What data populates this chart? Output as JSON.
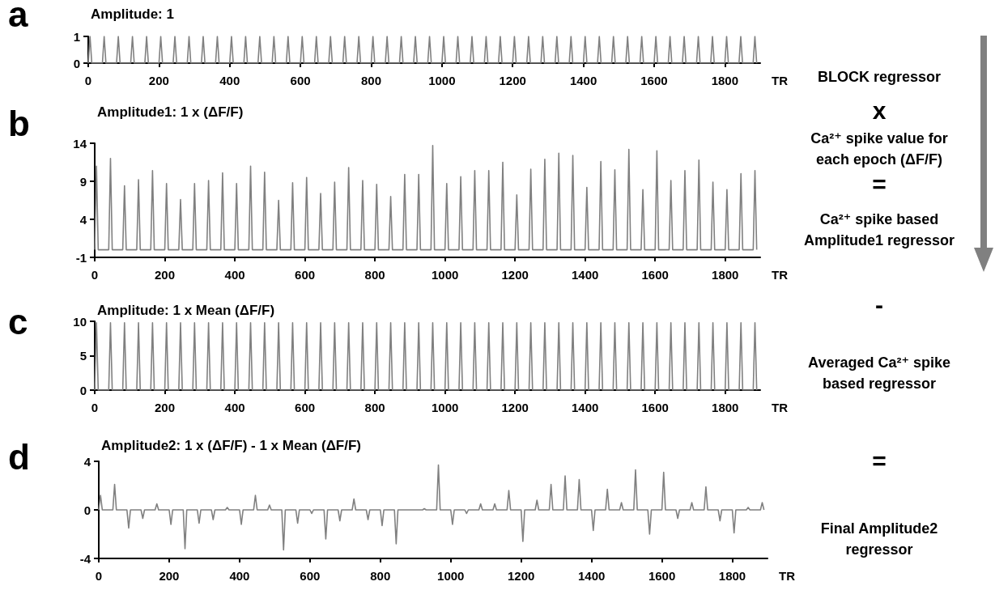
{
  "chart_data": [
    {
      "type": "line",
      "title": "Amplitude: 1",
      "xlabel": "TR",
      "marker": "none",
      "xlim": [
        0,
        1900
      ],
      "xticks": [
        0,
        200,
        400,
        600,
        800,
        1000,
        1200,
        1400,
        1600,
        1800
      ],
      "ylim": [
        0,
        1
      ],
      "yticks": [
        0,
        1
      ],
      "x": [
        0,
        5,
        10,
        40,
        45,
        50,
        80,
        85,
        90,
        120,
        125,
        130,
        160,
        165,
        170,
        200,
        205,
        210,
        240,
        245,
        250,
        280,
        285,
        290,
        320,
        325,
        330,
        360,
        365,
        370,
        400,
        405,
        410,
        440,
        445,
        450,
        480,
        485,
        490,
        520,
        525,
        530,
        560,
        565,
        570,
        600,
        605,
        610,
        640,
        645,
        650,
        680,
        685,
        690,
        720,
        725,
        730,
        760,
        765,
        770,
        800,
        805,
        810,
        840,
        845,
        850,
        880,
        885,
        890,
        920,
        925,
        930,
        960,
        965,
        970,
        1000,
        1005,
        1010,
        1040,
        1045,
        1050,
        1080,
        1085,
        1090,
        1120,
        1125,
        1130,
        1160,
        1165,
        1170,
        1200,
        1205,
        1210,
        1240,
        1245,
        1250,
        1280,
        1285,
        1290,
        1320,
        1325,
        1330,
        1360,
        1365,
        1370,
        1400,
        1405,
        1410,
        1440,
        1445,
        1450,
        1480,
        1485,
        1490,
        1520,
        1525,
        1530,
        1560,
        1565,
        1570,
        1600,
        1605,
        1610,
        1640,
        1645,
        1650,
        1680,
        1685,
        1690,
        1720,
        1725,
        1730,
        1760,
        1765,
        1770,
        1800,
        1805,
        1810,
        1840,
        1845,
        1850,
        1880,
        1885,
        1890
      ],
      "series": [
        {
          "color": "#808080",
          "values": [
            0,
            1,
            0,
            0,
            1,
            0,
            0,
            1,
            0,
            0,
            1,
            0,
            0,
            1,
            0,
            0,
            1,
            0,
            0,
            1,
            0,
            0,
            1,
            0,
            0,
            1,
            0,
            0,
            1,
            0,
            0,
            1,
            0,
            0,
            1,
            0,
            0,
            1,
            0,
            0,
            1,
            0,
            0,
            1,
            0,
            0,
            1,
            0,
            0,
            1,
            0,
            0,
            1,
            0,
            0,
            1,
            0,
            0,
            1,
            0,
            0,
            1,
            0,
            0,
            1,
            0,
            0,
            1,
            0,
            0,
            1,
            0,
            0,
            1,
            0,
            0,
            1,
            0,
            0,
            1,
            0,
            0,
            1,
            0,
            0,
            1,
            0,
            0,
            1,
            0,
            0,
            1,
            0,
            0,
            1,
            0,
            0,
            1,
            0,
            0,
            1,
            0,
            0,
            1,
            0,
            0,
            1,
            0,
            0,
            1,
            0,
            0,
            1,
            0,
            0,
            1,
            0,
            0,
            1,
            0,
            0,
            1,
            0,
            0,
            1,
            0,
            0,
            1,
            0,
            0,
            1,
            0,
            0,
            1,
            0,
            0,
            1,
            0,
            0,
            1,
            0,
            0,
            1,
            0
          ]
        }
      ],
      "annotations": [
        "a",
        "BLOCK regressor",
        "x"
      ]
    },
    {
      "type": "line",
      "title": "Amplitude1: 1 x (ΔF/F)",
      "xlabel": "TR",
      "marker": "none",
      "xlim": [
        0,
        1900
      ],
      "xticks": [
        0,
        200,
        400,
        600,
        800,
        1000,
        1200,
        1400,
        1600,
        1800
      ],
      "ylim": [
        -1,
        14
      ],
      "yticks": [
        -1,
        4,
        9,
        14
      ],
      "x": [
        0,
        5,
        10,
        40,
        45,
        50,
        80,
        85,
        90,
        120,
        125,
        130,
        160,
        165,
        170,
        200,
        205,
        210,
        240,
        245,
        250,
        280,
        285,
        290,
        320,
        325,
        330,
        360,
        365,
        370,
        400,
        405,
        410,
        440,
        445,
        450,
        480,
        485,
        490,
        520,
        525,
        530,
        560,
        565,
        570,
        600,
        605,
        610,
        640,
        645,
        650,
        680,
        685,
        690,
        720,
        725,
        730,
        760,
        765,
        770,
        800,
        805,
        810,
        840,
        845,
        850,
        880,
        885,
        890,
        920,
        925,
        930,
        960,
        965,
        970,
        1000,
        1005,
        1010,
        1040,
        1045,
        1050,
        1080,
        1085,
        1090,
        1120,
        1125,
        1130,
        1160,
        1165,
        1170,
        1200,
        1205,
        1210,
        1240,
        1245,
        1250,
        1280,
        1285,
        1290,
        1320,
        1325,
        1330,
        1360,
        1365,
        1370,
        1400,
        1405,
        1410,
        1440,
        1445,
        1450,
        1480,
        1485,
        1490,
        1520,
        1525,
        1530,
        1560,
        1565,
        1570,
        1600,
        1605,
        1610,
        1640,
        1645,
        1650,
        1680,
        1685,
        1690,
        1720,
        1725,
        1730,
        1760,
        1765,
        1770,
        1800,
        1805,
        1810,
        1840,
        1845,
        1850,
        1880,
        1885,
        1890
      ],
      "series": [
        {
          "color": "#808080",
          "values": [
            0,
            11.0,
            0,
            0,
            12.0,
            0,
            0,
            8.4,
            0,
            0,
            9.2,
            0,
            0,
            10.4,
            0,
            0,
            8.7,
            0,
            0,
            6.6,
            0,
            0,
            8.7,
            0,
            0,
            9.1,
            0,
            0,
            10.1,
            0,
            0,
            8.7,
            0,
            0,
            11.0,
            0,
            0,
            10.2,
            0,
            0,
            6.5,
            0,
            0,
            8.8,
            0,
            0,
            9.5,
            0,
            0,
            7.4,
            0,
            0,
            8.9,
            0,
            0,
            10.8,
            0,
            0,
            9.1,
            0,
            0,
            8.6,
            0,
            0,
            7.0,
            0,
            0,
            9.9,
            0,
            0,
            9.9,
            0,
            0,
            13.7,
            0,
            0,
            8.7,
            0,
            0,
            9.6,
            0,
            0,
            10.4,
            0,
            0,
            10.4,
            0,
            0,
            11.5,
            0,
            0,
            7.2,
            0,
            0,
            10.6,
            0,
            0,
            11.9,
            0,
            0,
            12.7,
            0,
            0,
            12.4,
            0,
            0,
            8.2,
            0,
            0,
            11.6,
            0,
            0,
            10.5,
            0,
            0,
            13.2,
            0,
            0,
            7.9,
            0,
            0,
            13.0,
            0,
            0,
            9.1,
            0,
            0,
            10.4,
            0,
            0,
            11.8,
            0,
            0,
            8.9,
            0,
            0,
            7.9,
            0,
            0,
            10.0,
            0,
            0,
            10.4,
            0
          ]
        }
      ],
      "annotations": [
        "b",
        "Ca²⁺ spike value for each epoch (ΔF/F)",
        "=",
        "Ca²⁺ spike based Amplitude1 regressor"
      ]
    },
    {
      "type": "line",
      "title": "Amplitude: 1 x Mean (ΔF/F)",
      "xlabel": "TR",
      "marker": "none",
      "xlim": [
        0,
        1900
      ],
      "xticks": [
        0,
        200,
        400,
        600,
        800,
        1000,
        1200,
        1400,
        1600,
        1800
      ],
      "ylim": [
        0,
        10
      ],
      "yticks": [
        0,
        5,
        10
      ],
      "x": [
        0,
        5,
        10,
        40,
        45,
        50,
        80,
        85,
        90,
        120,
        125,
        130,
        160,
        165,
        170,
        200,
        205,
        210,
        240,
        245,
        250,
        280,
        285,
        290,
        320,
        325,
        330,
        360,
        365,
        370,
        400,
        405,
        410,
        440,
        445,
        450,
        480,
        485,
        490,
        520,
        525,
        530,
        560,
        565,
        570,
        600,
        605,
        610,
        640,
        645,
        650,
        680,
        685,
        690,
        720,
        725,
        730,
        760,
        765,
        770,
        800,
        805,
        810,
        840,
        845,
        850,
        880,
        885,
        890,
        920,
        925,
        930,
        960,
        965,
        970,
        1000,
        1005,
        1010,
        1040,
        1045,
        1050,
        1080,
        1085,
        1090,
        1120,
        1125,
        1130,
        1160,
        1165,
        1170,
        1200,
        1205,
        1210,
        1240,
        1245,
        1250,
        1280,
        1285,
        1290,
        1320,
        1325,
        1330,
        1360,
        1365,
        1370,
        1400,
        1405,
        1410,
        1440,
        1445,
        1450,
        1480,
        1485,
        1490,
        1520,
        1525,
        1530,
        1560,
        1565,
        1570,
        1600,
        1605,
        1610,
        1640,
        1645,
        1650,
        1680,
        1685,
        1690,
        1720,
        1725,
        1730,
        1760,
        1765,
        1770,
        1800,
        1805,
        1810,
        1840,
        1845,
        1850,
        1880,
        1885,
        1890
      ],
      "series": [
        {
          "color": "#808080",
          "values": [
            0,
            9.8,
            0,
            0,
            9.8,
            0,
            0,
            9.8,
            0,
            0,
            9.8,
            0,
            0,
            9.8,
            0,
            0,
            9.8,
            0,
            0,
            9.8,
            0,
            0,
            9.8,
            0,
            0,
            9.8,
            0,
            0,
            9.8,
            0,
            0,
            9.8,
            0,
            0,
            9.8,
            0,
            0,
            9.8,
            0,
            0,
            9.8,
            0,
            0,
            9.8,
            0,
            0,
            9.8,
            0,
            0,
            9.8,
            0,
            0,
            9.8,
            0,
            0,
            9.8,
            0,
            0,
            9.8,
            0,
            0,
            9.8,
            0,
            0,
            9.8,
            0,
            0,
            9.8,
            0,
            0,
            9.8,
            0,
            0,
            9.8,
            0,
            0,
            9.8,
            0,
            0,
            9.8,
            0,
            0,
            9.8,
            0,
            0,
            9.8,
            0,
            0,
            9.8,
            0,
            0,
            9.8,
            0,
            0,
            9.8,
            0,
            0,
            9.8,
            0,
            0,
            9.8,
            0,
            0,
            9.8,
            0,
            0,
            9.8,
            0,
            0,
            9.8,
            0,
            0,
            9.8,
            0,
            0,
            9.8,
            0,
            0,
            9.8,
            0,
            0,
            9.8,
            0,
            0,
            9.8,
            0,
            0,
            9.8,
            0,
            0,
            9.8,
            0,
            0,
            9.8,
            0,
            0,
            9.8,
            0,
            0,
            9.8,
            0,
            0,
            9.8,
            0
          ]
        }
      ],
      "annotations": [
        "c",
        "-",
        "Averaged Ca²⁺ spike based regressor"
      ]
    },
    {
      "type": "line",
      "title": "Amplitude2: 1 x (ΔF/F) - 1 x Mean (ΔF/F)",
      "xlabel": "TR",
      "marker": "none",
      "xlim": [
        0,
        1900
      ],
      "xticks": [
        0,
        200,
        400,
        600,
        800,
        1000,
        1200,
        1400,
        1600,
        1800
      ],
      "ylim": [
        -4,
        4
      ],
      "yticks": [
        -4,
        0,
        4
      ],
      "x": [
        0,
        5,
        10,
        40,
        45,
        50,
        80,
        85,
        90,
        120,
        125,
        130,
        160,
        165,
        170,
        200,
        205,
        210,
        240,
        245,
        250,
        280,
        285,
        290,
        320,
        325,
        330,
        360,
        365,
        370,
        400,
        405,
        410,
        440,
        445,
        450,
        480,
        485,
        490,
        520,
        525,
        530,
        560,
        565,
        570,
        600,
        605,
        610,
        640,
        645,
        650,
        680,
        685,
        690,
        720,
        725,
        730,
        760,
        765,
        770,
        800,
        805,
        810,
        840,
        845,
        850,
        880,
        885,
        890,
        920,
        925,
        930,
        960,
        965,
        970,
        1000,
        1005,
        1010,
        1040,
        1045,
        1050,
        1080,
        1085,
        1090,
        1120,
        1125,
        1130,
        1160,
        1165,
        1170,
        1200,
        1205,
        1210,
        1240,
        1245,
        1250,
        1280,
        1285,
        1290,
        1320,
        1325,
        1330,
        1360,
        1365,
        1370,
        1400,
        1405,
        1410,
        1440,
        1445,
        1450,
        1480,
        1485,
        1490,
        1520,
        1525,
        1530,
        1560,
        1565,
        1570,
        1600,
        1605,
        1610,
        1640,
        1645,
        1650,
        1680,
        1685,
        1690,
        1720,
        1725,
        1730,
        1760,
        1765,
        1770,
        1800,
        1805,
        1810,
        1840,
        1845,
        1850,
        1880,
        1885,
        1890
      ],
      "series": [
        {
          "color": "#808080",
          "values": [
            0,
            1.2,
            0,
            0,
            2.1,
            0,
            0,
            -1.5,
            0,
            0,
            -0.7,
            0,
            0,
            0.5,
            0,
            0,
            -1.2,
            0,
            0,
            -3.2,
            0,
            0,
            -1.1,
            0,
            0,
            -0.8,
            0,
            0,
            0.2,
            0,
            0,
            -1.2,
            0,
            0,
            1.2,
            0,
            0,
            0.4,
            0,
            0,
            -3.3,
            0,
            0,
            -1.1,
            0,
            0,
            -0.3,
            0,
            0,
            -2.4,
            0,
            0,
            -0.9,
            0,
            0,
            0.9,
            0,
            0,
            -0.8,
            0,
            0,
            -1.3,
            0,
            0,
            -2.8,
            0,
            0,
            0,
            0,
            0,
            0.1,
            0,
            0,
            3.7,
            0,
            0,
            -1.2,
            0,
            0,
            -0.3,
            0,
            0,
            0.5,
            0,
            0,
            0.5,
            0,
            0,
            1.6,
            0,
            0,
            -2.6,
            0,
            0,
            0.8,
            0,
            0,
            2.1,
            0,
            0,
            2.8,
            0,
            0,
            2.5,
            0,
            0,
            -1.7,
            0,
            0,
            1.7,
            0,
            0,
            0.6,
            0,
            0,
            3.3,
            0,
            0,
            -2.0,
            0,
            0,
            3.1,
            0,
            0,
            -0.7,
            0,
            0,
            0.6,
            0,
            0,
            1.9,
            0,
            0,
            -0.9,
            0,
            0,
            -1.9,
            0,
            0,
            0.2,
            0,
            0,
            0.6,
            0
          ]
        }
      ],
      "annotations": [
        "d",
        "=",
        "Final Amplitude2 regressor"
      ]
    }
  ]
}
